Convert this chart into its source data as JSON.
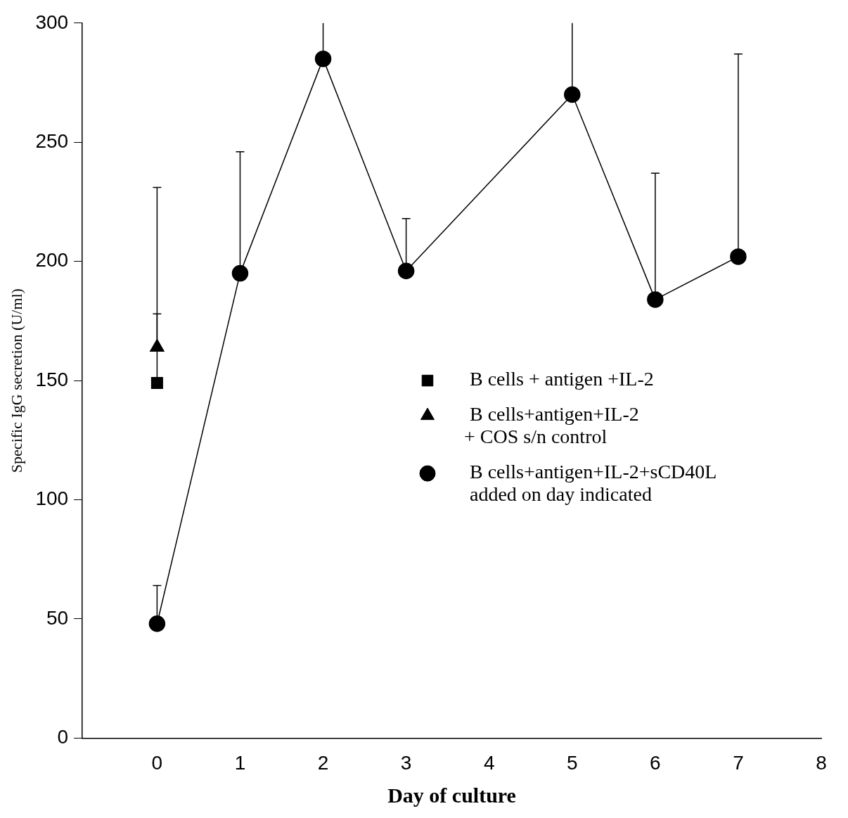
{
  "chart_data": {
    "type": "line",
    "xlabel": "Day of culture",
    "ylabel": "Specific IgG secretion (U/ml)",
    "xlim": [
      -0.9,
      8
    ],
    "xticks": [
      0,
      1,
      2,
      3,
      4,
      5,
      6,
      7,
      8
    ],
    "ylim": [
      0,
      300
    ],
    "yticks": [
      0,
      50,
      100,
      150,
      200,
      250,
      300
    ],
    "grid": false,
    "legend": "right",
    "line_style": "solid",
    "series": [
      {
        "name": "B cells + antigen +IL-2",
        "type": "scatter",
        "marker": "square",
        "color": "#000000",
        "x": [
          0
        ],
        "values": [
          149
        ],
        "errors": [
          [
            149,
            231
          ]
        ]
      },
      {
        "name": "B cells+antigen+IL-2\n+ COS s/n control",
        "type": "scatter",
        "marker": "triangle",
        "color": "#000000",
        "x": [
          0
        ],
        "values": [
          164
        ],
        "errors": [
          [
            164,
            178
          ]
        ]
      },
      {
        "name": "B cells+antigen+IL-2+sCD40L\nadded on day indicated",
        "marker": "circle",
        "color": "#000000",
        "x": [
          0,
          1,
          2,
          3,
          5,
          6,
          7
        ],
        "values": [
          48,
          195,
          285,
          196,
          270,
          184,
          202
        ],
        "errors": [
          [
            48,
            64
          ],
          [
            195,
            246
          ],
          [
            285,
            300
          ],
          [
            196,
            218
          ],
          [
            270,
            300
          ],
          [
            184,
            237
          ],
          [
            202,
            287
          ]
        ]
      }
    ]
  }
}
